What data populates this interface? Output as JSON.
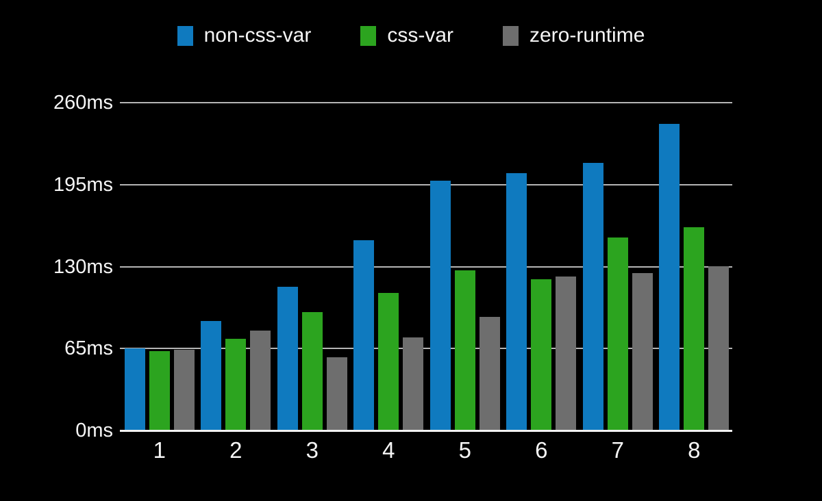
{
  "chart_data": {
    "type": "bar",
    "categories": [
      "1",
      "2",
      "3",
      "4",
      "5",
      "6",
      "7",
      "8"
    ],
    "series": [
      {
        "name": "non-css-var",
        "color": "#0f7abf",
        "values": [
          65,
          87,
          114,
          151,
          198,
          204,
          212,
          243
        ]
      },
      {
        "name": "css-var",
        "color": "#2ca41f",
        "values": [
          63,
          73,
          94,
          109,
          127,
          120,
          153,
          161
        ]
      },
      {
        "name": "zero-runtime",
        "color": "#6e6e6e",
        "values": [
          64,
          79,
          58,
          74,
          90,
          122,
          125,
          130
        ]
      }
    ],
    "unit": "ms",
    "y_ticks": [
      {
        "value": 0,
        "label": "0ms"
      },
      {
        "value": 65,
        "label": "65ms"
      },
      {
        "value": 130,
        "label": "130ms"
      },
      {
        "value": 195,
        "label": "195ms"
      },
      {
        "value": 260,
        "label": "260ms"
      }
    ],
    "ylim": [
      0,
      260
    ],
    "grid": true,
    "legend_position": "top",
    "background_color": "#000000",
    "text_color": "#f5f5f5",
    "gridline_color": "#b5b5b5",
    "axis_line_color": "#f2f2f2"
  }
}
